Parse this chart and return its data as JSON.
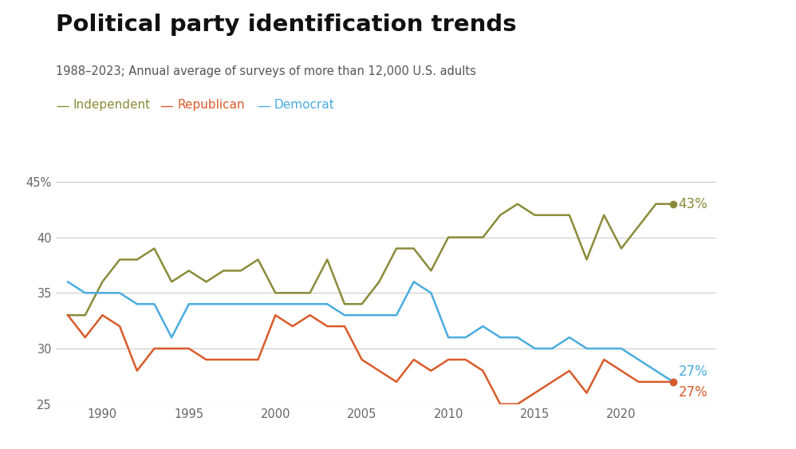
{
  "title": "Political party identification trends",
  "subtitle": "1988–2023; Annual average of surveys of more than 12,000 U.S. adults",
  "legend_labels": [
    "Independent",
    "Republican",
    "Democrat"
  ],
  "legend_colors": [
    "#8B8B3A",
    "#D95B2A",
    "#4AACE0"
  ],
  "years": [
    1988,
    1989,
    1990,
    1991,
    1992,
    1993,
    1994,
    1995,
    1996,
    1997,
    1998,
    1999,
    2000,
    2001,
    2002,
    2003,
    2004,
    2005,
    2006,
    2007,
    2008,
    2009,
    2010,
    2011,
    2012,
    2013,
    2014,
    2015,
    2016,
    2017,
    2018,
    2019,
    2020,
    2021,
    2022,
    2023
  ],
  "independent": [
    33,
    33,
    36,
    38,
    38,
    39,
    36,
    37,
    36,
    37,
    37,
    38,
    35,
    35,
    35,
    38,
    34,
    34,
    36,
    39,
    39,
    37,
    40,
    40,
    40,
    42,
    43,
    42,
    42,
    42,
    38,
    42,
    39,
    41,
    43,
    43
  ],
  "republican": [
    33,
    31,
    33,
    32,
    28,
    30,
    30,
    30,
    29,
    29,
    29,
    29,
    33,
    32,
    33,
    32,
    32,
    29,
    28,
    27,
    29,
    28,
    29,
    29,
    28,
    25,
    25,
    26,
    27,
    28,
    26,
    29,
    28,
    27,
    27,
    27
  ],
  "democrat": [
    36,
    35,
    35,
    35,
    34,
    34,
    31,
    34,
    34,
    34,
    34,
    34,
    34,
    34,
    34,
    34,
    33,
    33,
    33,
    33,
    36,
    35,
    31,
    31,
    32,
    31,
    31,
    30,
    30,
    31,
    30,
    30,
    30,
    29,
    28,
    27
  ],
  "ylim": [
    25,
    46
  ],
  "yticks": [
    25,
    30,
    35,
    40,
    45
  ],
  "ytick_labels": [
    "25",
    "30",
    "35",
    "40",
    "45%"
  ],
  "background_color": "#ffffff",
  "grid_color": "#cccccc",
  "title_fontsize": 21,
  "subtitle_fontsize": 10.5,
  "legend_fontsize": 11,
  "annotation_fontsize": 12
}
